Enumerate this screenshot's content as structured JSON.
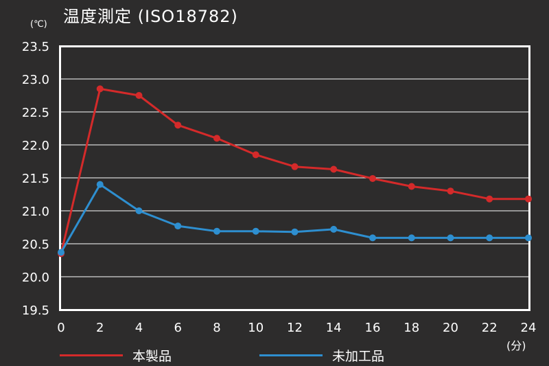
{
  "header": {
    "title": "温度測定 (ISO18782)",
    "y_unit": "(℃)",
    "x_unit": "(分)"
  },
  "chart_data": {
    "type": "line",
    "title": "温度測定 (ISO18782)",
    "xlabel": "(分)",
    "ylabel": "(℃)",
    "x": [
      0,
      2,
      4,
      6,
      8,
      10,
      12,
      14,
      16,
      18,
      20,
      22,
      24
    ],
    "xlim": [
      0,
      24
    ],
    "ylim": [
      19.5,
      23.5
    ],
    "xticks": [
      "0",
      "2",
      "4",
      "6",
      "8",
      "10",
      "12",
      "14",
      "16",
      "18",
      "20",
      "22",
      "24"
    ],
    "yticks": [
      "19.5",
      "20.0",
      "20.5",
      "21.0",
      "21.5",
      "22.0",
      "22.5",
      "23.0",
      "23.5"
    ],
    "grid": true,
    "legend_position": "bottom",
    "series": [
      {
        "name": "本製品",
        "color": "#d42a2a",
        "values": [
          20.35,
          22.85,
          22.75,
          22.3,
          22.1,
          21.85,
          21.67,
          21.63,
          21.49,
          21.37,
          21.3,
          21.18,
          21.18
        ]
      },
      {
        "name": "未加工品",
        "color": "#2e8fd0",
        "values": [
          20.37,
          21.4,
          21.0,
          20.77,
          20.69,
          20.69,
          20.68,
          20.72,
          20.59,
          20.59,
          20.59,
          20.59,
          20.59
        ]
      }
    ]
  }
}
